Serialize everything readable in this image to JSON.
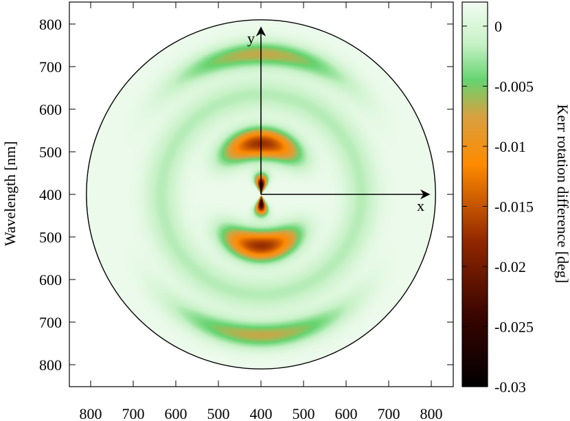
{
  "chart_data": {
    "type": "heatmap",
    "plot": "polar-disk",
    "title": "",
    "ylabel": "Wavelength [nm]",
    "xlabel": "",
    "center_wavelength": 400,
    "outer_wavelength": 810,
    "y_ticks_top": [
      800,
      700,
      600,
      500,
      400
    ],
    "y_ticks_bottom": [
      500,
      600,
      700,
      800
    ],
    "x_ticks_left": [
      800,
      700,
      600,
      500,
      400
    ],
    "x_ticks_right": [
      500,
      600,
      700,
      800
    ],
    "x_axis_label": "x",
    "y_axis_label": "y",
    "colorbar": {
      "label": "Kerr rotation difference [deg]",
      "min": -0.03,
      "max": 0.002,
      "ticks": [
        0,
        -0.005,
        -0.01,
        -0.015,
        -0.02,
        -0.025,
        -0.03
      ],
      "tick_labels": [
        "0",
        "-0.005",
        "-0.01",
        "-0.015",
        "-0.02",
        "-0.025",
        "-0.03"
      ],
      "colors": [
        {
          "value": -0.03,
          "color": "#000000"
        },
        {
          "value": -0.024,
          "color": "#3a0500"
        },
        {
          "value": -0.018,
          "color": "#8f2600"
        },
        {
          "value": -0.0115,
          "color": "#ff8a00"
        },
        {
          "value": -0.0075,
          "color": "#d8a040"
        },
        {
          "value": -0.0045,
          "color": "#66d470"
        },
        {
          "value": -0.0015,
          "color": "#c6f1c6"
        },
        {
          "value": 0.002,
          "color": "#f2fcf1"
        }
      ]
    },
    "features": [
      {
        "name": "outer-ring-band",
        "radius_wavelength": 730,
        "lobes": "top-bottom",
        "peak_value": -0.0085
      },
      {
        "name": "middle-ring",
        "radius_wavelength": 635,
        "peak_value": -0.0035
      },
      {
        "name": "inner-lobe",
        "radius_wavelength": 520,
        "lobes": "top-bottom",
        "peak_value": -0.019
      },
      {
        "name": "core",
        "radius_wavelength": 420,
        "lobes": "top-bottom",
        "peak_value": -0.028
      }
    ]
  }
}
